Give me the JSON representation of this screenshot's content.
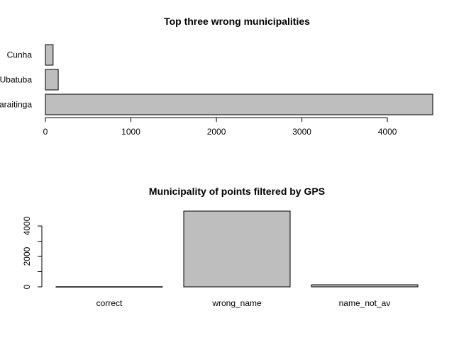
{
  "chart_data": [
    {
      "type": "bar",
      "orientation": "horizontal",
      "title": "Top three wrong municipalities",
      "categories": [
        "Cunha",
        "Ubatuba",
        "São Luiz do Paraitinga"
      ],
      "values": [
        90,
        150,
        4530
      ],
      "xlabel": "",
      "ylabel": "",
      "xticks": [
        0,
        1000,
        2000,
        3000,
        4000
      ],
      "xlim": [
        0,
        4530
      ],
      "grid": false,
      "bar_color": "#bebebe"
    },
    {
      "type": "bar",
      "orientation": "vertical",
      "title": "Municipality of points filtered by GPS",
      "categories": [
        "correct",
        "wrong_name",
        "name_not_av"
      ],
      "values": [
        10,
        4980,
        140
      ],
      "xlabel": "",
      "ylabel": "",
      "yticks": [
        0,
        2000,
        4000
      ],
      "yminor": [
        1000,
        3000
      ],
      "ylim": [
        0,
        4980
      ],
      "grid": false,
      "bar_color": "#bebebe"
    }
  ]
}
